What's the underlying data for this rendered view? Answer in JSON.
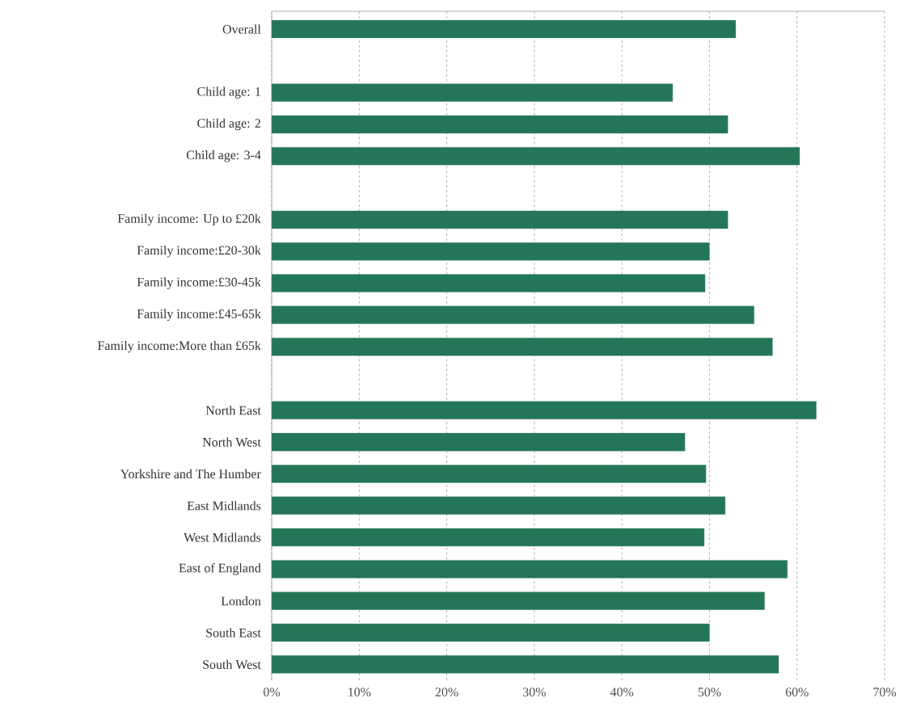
{
  "chart_data": {
    "type": "bar",
    "orientation": "horizontal",
    "color": "#237657",
    "grid": "x",
    "categories": [
      "Overall",
      null,
      "Child age: 1",
      "Child age: 2",
      "Child age: 3-4",
      null,
      "Family income: Up to £20k",
      "Family income:£20-30k",
      "Family income:£30-45k",
      "Family income:£45-65k",
      "Family income:More than £65k",
      null,
      "North East",
      "North West",
      "Yorkshire and The Humber",
      "East Midlands",
      "West Midlands",
      "East of England",
      "London",
      "South East",
      "South West"
    ],
    "values": [
      53.0,
      null,
      45.8,
      52.1,
      60.3,
      null,
      52.1,
      50.0,
      49.5,
      55.1,
      57.2,
      null,
      62.2,
      47.2,
      49.6,
      51.8,
      49.4,
      58.9,
      56.3,
      50.0,
      57.9
    ],
    "xlim": [
      0,
      70
    ],
    "xticks": [
      {
        "value": 0,
        "label": "0%"
      },
      {
        "value": 10,
        "label": "10%"
      },
      {
        "value": 20,
        "label": "20%"
      },
      {
        "value": 30,
        "label": "30%"
      },
      {
        "value": 40,
        "label": "40%"
      },
      {
        "value": 50,
        "label": "50%"
      },
      {
        "value": 60,
        "label": "60%"
      },
      {
        "value": 70,
        "label": "70%"
      }
    ]
  }
}
